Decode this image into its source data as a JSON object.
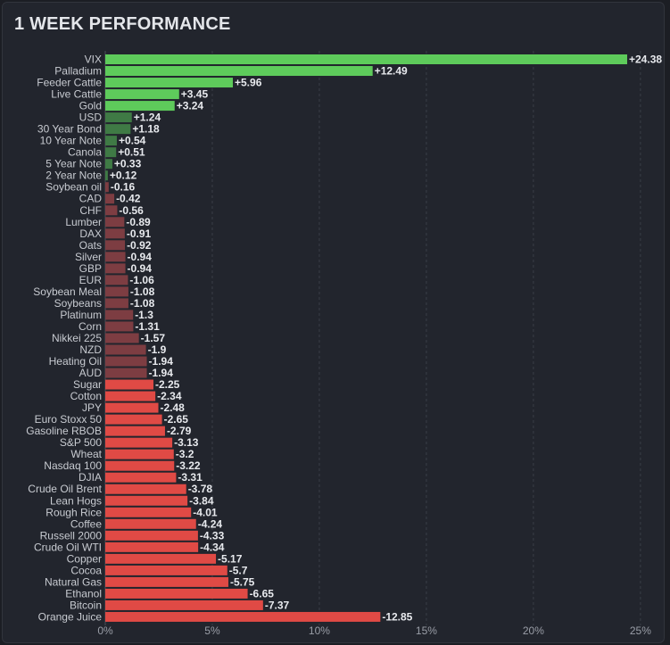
{
  "chart_data": {
    "type": "bar",
    "orientation": "horizontal",
    "title": "1 WEEK PERFORMANCE",
    "xlabel": "",
    "ylabel": "",
    "xlim": [
      0,
      25
    ],
    "xticks": [
      "0%",
      "5%",
      "10%",
      "15%",
      "20%",
      "25%"
    ],
    "grid": "vertical dashed",
    "categories": [
      "VIX",
      "Palladium",
      "Feeder Cattle",
      "Live Cattle",
      "Gold",
      "USD",
      "30 Year Bond",
      "10 Year Note",
      "Canola",
      "5 Year Note",
      "2 Year Note",
      "Soybean oil",
      "CAD",
      "CHF",
      "Lumber",
      "DAX",
      "Oats",
      "Silver",
      "GBP",
      "EUR",
      "Soybean Meal",
      "Soybeans",
      "Platinum",
      "Corn",
      "Nikkei 225",
      "NZD",
      "Heating Oil",
      "AUD",
      "Sugar",
      "Cotton",
      "JPY",
      "Euro Stoxx 50",
      "Gasoline RBOB",
      "S&P 500",
      "Wheat",
      "Nasdaq 100",
      "DJIA",
      "Crude Oil Brent",
      "Lean Hogs",
      "Rough Rice",
      "Coffee",
      "Russell 2000",
      "Crude Oil WTI",
      "Copper",
      "Cocoa",
      "Natural Gas",
      "Ethanol",
      "Bitcoin",
      "Orange Juice"
    ],
    "values": [
      24.38,
      12.49,
      5.96,
      3.45,
      3.24,
      1.24,
      1.18,
      0.54,
      0.51,
      0.33,
      0.12,
      -0.16,
      -0.42,
      -0.56,
      -0.89,
      -0.91,
      -0.92,
      -0.94,
      -0.94,
      -1.06,
      -1.08,
      -1.08,
      -1.3,
      -1.31,
      -1.57,
      -1.9,
      -1.94,
      -1.94,
      -2.25,
      -2.34,
      -2.48,
      -2.65,
      -2.79,
      -3.13,
      -3.2,
      -3.22,
      -3.31,
      -3.78,
      -3.84,
      -4.01,
      -4.24,
      -4.33,
      -4.34,
      -5.17,
      -5.7,
      -5.75,
      -6.65,
      -7.37,
      -12.85
    ],
    "value_labels": [
      "+24.38",
      "+12.49",
      "+5.96",
      "+3.45",
      "+3.24",
      "+1.24",
      "+1.18",
      "+0.54",
      "+0.51",
      "+0.33",
      "+0.12",
      "-0.16",
      "-0.42",
      "-0.56",
      "-0.89",
      "-0.91",
      "-0.92",
      "-0.94",
      "-0.94",
      "-1.06",
      "-1.08",
      "-1.08",
      "-1.3",
      "-1.31",
      "-1.57",
      "-1.9",
      "-1.94",
      "-1.94",
      "-2.25",
      "-2.34",
      "-2.48",
      "-2.65",
      "-2.79",
      "-3.13",
      "-3.2",
      "-3.22",
      "-3.31",
      "-3.78",
      "-3.84",
      "-4.01",
      "-4.24",
      "-4.33",
      "-4.34",
      "-5.17",
      "-5.7",
      "-5.75",
      "-6.65",
      "-7.37",
      "-12.85"
    ],
    "colors": {
      "positive_strong": "#5ecb5b",
      "positive_weak": "#3f7a45",
      "negative_weak": "#7d3d42",
      "negative_strong": "#e04a45"
    }
  }
}
